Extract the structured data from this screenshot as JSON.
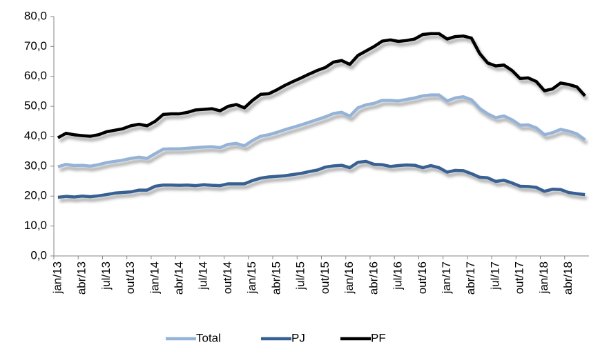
{
  "chart_data": {
    "type": "line",
    "categories": [
      "jan/13",
      null,
      null,
      "abr/13",
      null,
      null,
      "jul/13",
      null,
      null,
      "out/13",
      null,
      null,
      "jan/14",
      null,
      null,
      "abr/14",
      null,
      null,
      "jul/14",
      null,
      null,
      "out/14",
      null,
      null,
      "jan/15",
      null,
      null,
      "abr/15",
      null,
      null,
      "jul/15",
      null,
      null,
      "out/15",
      null,
      null,
      "jan/16",
      null,
      null,
      "abr/16",
      null,
      null,
      "jul/16",
      null,
      null,
      "out/16",
      null,
      null,
      "jan/17",
      null,
      null,
      "abr/17",
      null,
      null,
      "jul/17",
      null,
      null,
      "out/17",
      null,
      null,
      "jan/18",
      null,
      null,
      "abr/18",
      null,
      null
    ],
    "series": [
      {
        "name": "Total",
        "color": "#95b3d7",
        "values": [
          29.8,
          30.6,
          30.2,
          30.3,
          30,
          30.5,
          31.2,
          31.6,
          32,
          32.6,
          33,
          32.6,
          34.2,
          35.7,
          35.8,
          35.8,
          36,
          36.2,
          36.4,
          36.5,
          36.2,
          37.3,
          37.6,
          36.8,
          38.6,
          40,
          40.5,
          41.3,
          42.2,
          43,
          43.8,
          44.7,
          45.6,
          46.5,
          47.6,
          48,
          46.7,
          49.5,
          50.5,
          51,
          52,
          52,
          51.8,
          52.3,
          52.8,
          53.5,
          53.8,
          53.8,
          51.8,
          52.8,
          53.2,
          52.2,
          49.3,
          47.5,
          46.2,
          46.8,
          45.5,
          43.7,
          43.8,
          42.8,
          40.5,
          41.2,
          42.3,
          41.7,
          40.8,
          38.8
        ]
      },
      {
        "name": "PJ",
        "color": "#376092",
        "values": [
          19.6,
          19.9,
          19.7,
          20,
          19.8,
          20.1,
          20.5,
          21,
          21.2,
          21.4,
          22,
          22,
          23.3,
          23.7,
          23.7,
          23.6,
          23.7,
          23.5,
          23.8,
          23.6,
          23.5,
          24.1,
          24.1,
          24.1,
          25.2,
          26,
          26.4,
          26.6,
          26.8,
          27.2,
          27.6,
          28.2,
          28.7,
          29.7,
          30.1,
          30.3,
          29.5,
          31.3,
          31.6,
          30.6,
          30.5,
          29.9,
          30.2,
          30.4,
          30.3,
          29.5,
          30.2,
          29.5,
          28,
          28.6,
          28.5,
          27.5,
          26.3,
          26.1,
          24.9,
          25.3,
          24.4,
          23.3,
          23.2,
          22.9,
          21.6,
          22.3,
          22.2,
          21.2,
          20.8,
          20.5
        ]
      },
      {
        "name": "PF",
        "color": "#000000",
        "values": [
          39.5,
          41,
          40.5,
          40.2,
          40,
          40.5,
          41.5,
          42,
          42.5,
          43.5,
          44,
          43.5,
          45,
          47.3,
          47.5,
          47.5,
          48,
          48.8,
          49,
          49.2,
          48.5,
          50,
          50.6,
          49.5,
          52,
          54,
          54.2,
          55.5,
          57,
          58.3,
          59.5,
          60.8,
          62,
          63,
          64.8,
          65.3,
          64,
          67,
          68.5,
          70,
          71.8,
          72.2,
          71.7,
          72,
          72.5,
          74,
          74.3,
          74.3,
          72.5,
          73.3,
          73.5,
          72.8,
          67.7,
          64.5,
          63.5,
          63.8,
          62,
          59.3,
          59.5,
          58.3,
          55.2,
          55.8,
          57.8,
          57.3,
          56.5,
          53.5
        ]
      }
    ],
    "ylim": [
      0,
      80
    ],
    "yticks": [
      {
        "value": 0,
        "label": "0,0"
      },
      {
        "value": 10,
        "label": "10,0"
      },
      {
        "value": 20,
        "label": "20,0"
      },
      {
        "value": 30,
        "label": "30,0"
      },
      {
        "value": 40,
        "label": "40,0"
      },
      {
        "value": 50,
        "label": "50,0"
      },
      {
        "value": 60,
        "label": "60,0"
      },
      {
        "value": 70,
        "label": "70,0"
      },
      {
        "value": 80,
        "label": "80,0"
      }
    ],
    "grid": false,
    "legend": "bottom"
  }
}
